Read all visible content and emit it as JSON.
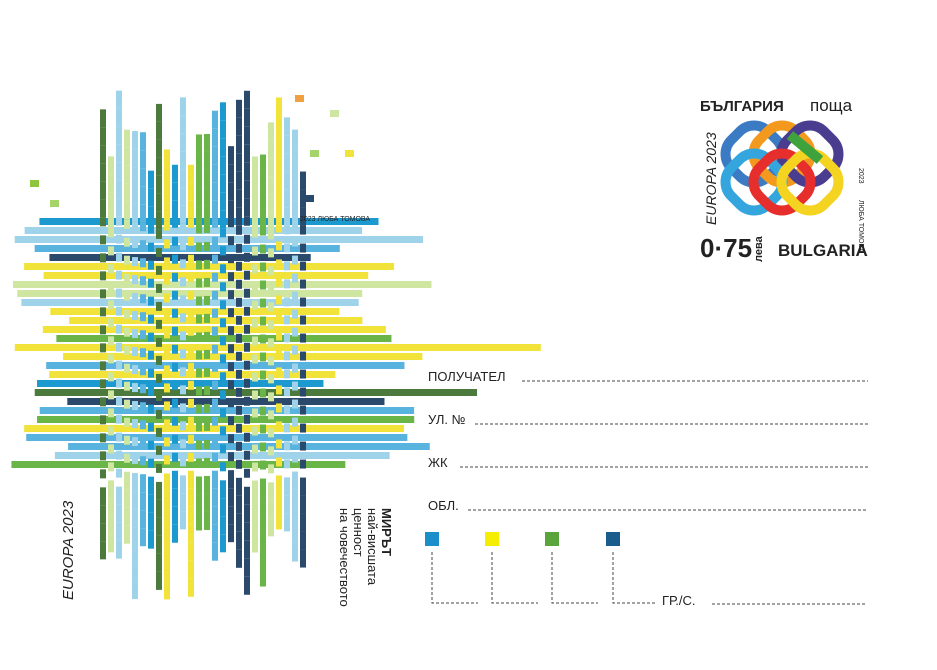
{
  "artwork": {
    "credit": "2023 ЛЮБА ТОМОВА",
    "europa": "EUROPA 2023",
    "message": [
      "МИРЪТ",
      "най-висшата",
      "ценност",
      "на човечеството"
    ]
  },
  "stamp": {
    "country_bg": "БЪЛГАРИЯ",
    "post": "поща",
    "europa": "EUROPA 2023",
    "price": "0·75",
    "currency": "лева",
    "country_en": "BULGARIA",
    "year": "2023",
    "author": "ЛЮБА ТОМОВА"
  },
  "address": {
    "fields": [
      "ПОЛУЧАТЕЛ",
      "УЛ. №",
      "ЖК",
      "ОБЛ."
    ],
    "city": "ГР./С."
  }
}
